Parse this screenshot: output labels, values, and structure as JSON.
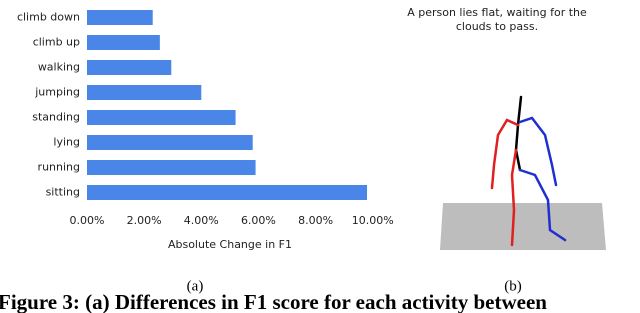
{
  "chart_data": {
    "type": "bar",
    "orientation": "horizontal",
    "categories": [
      "climb down",
      "climb up",
      "walking",
      "jumping",
      "standing",
      "lying",
      "running",
      "sitting"
    ],
    "values": [
      2.3,
      2.55,
      2.95,
      4.0,
      5.2,
      5.8,
      5.9,
      9.8
    ],
    "color": "#4a86e8",
    "xlabel": "Absolute Change in F1",
    "xlim": [
      0,
      10.5
    ],
    "xticks": [
      {
        "value": 0,
        "label": "0.00%"
      },
      {
        "value": 2,
        "label": "2.00%"
      },
      {
        "value": 4,
        "label": "4.00%"
      },
      {
        "value": 6,
        "label": "6.00%"
      },
      {
        "value": 8,
        "label": "8.00%"
      },
      {
        "value": 10,
        "label": "10.00%"
      }
    ],
    "grid": false
  },
  "panel_b": {
    "text": [
      "A person lies flat, waiting for the",
      "clouds to pass."
    ]
  },
  "subcaptions": [
    "(a)",
    "(b)"
  ],
  "figure_caption": "Figure 3: (a) Differences in F1 score for each activity between"
}
